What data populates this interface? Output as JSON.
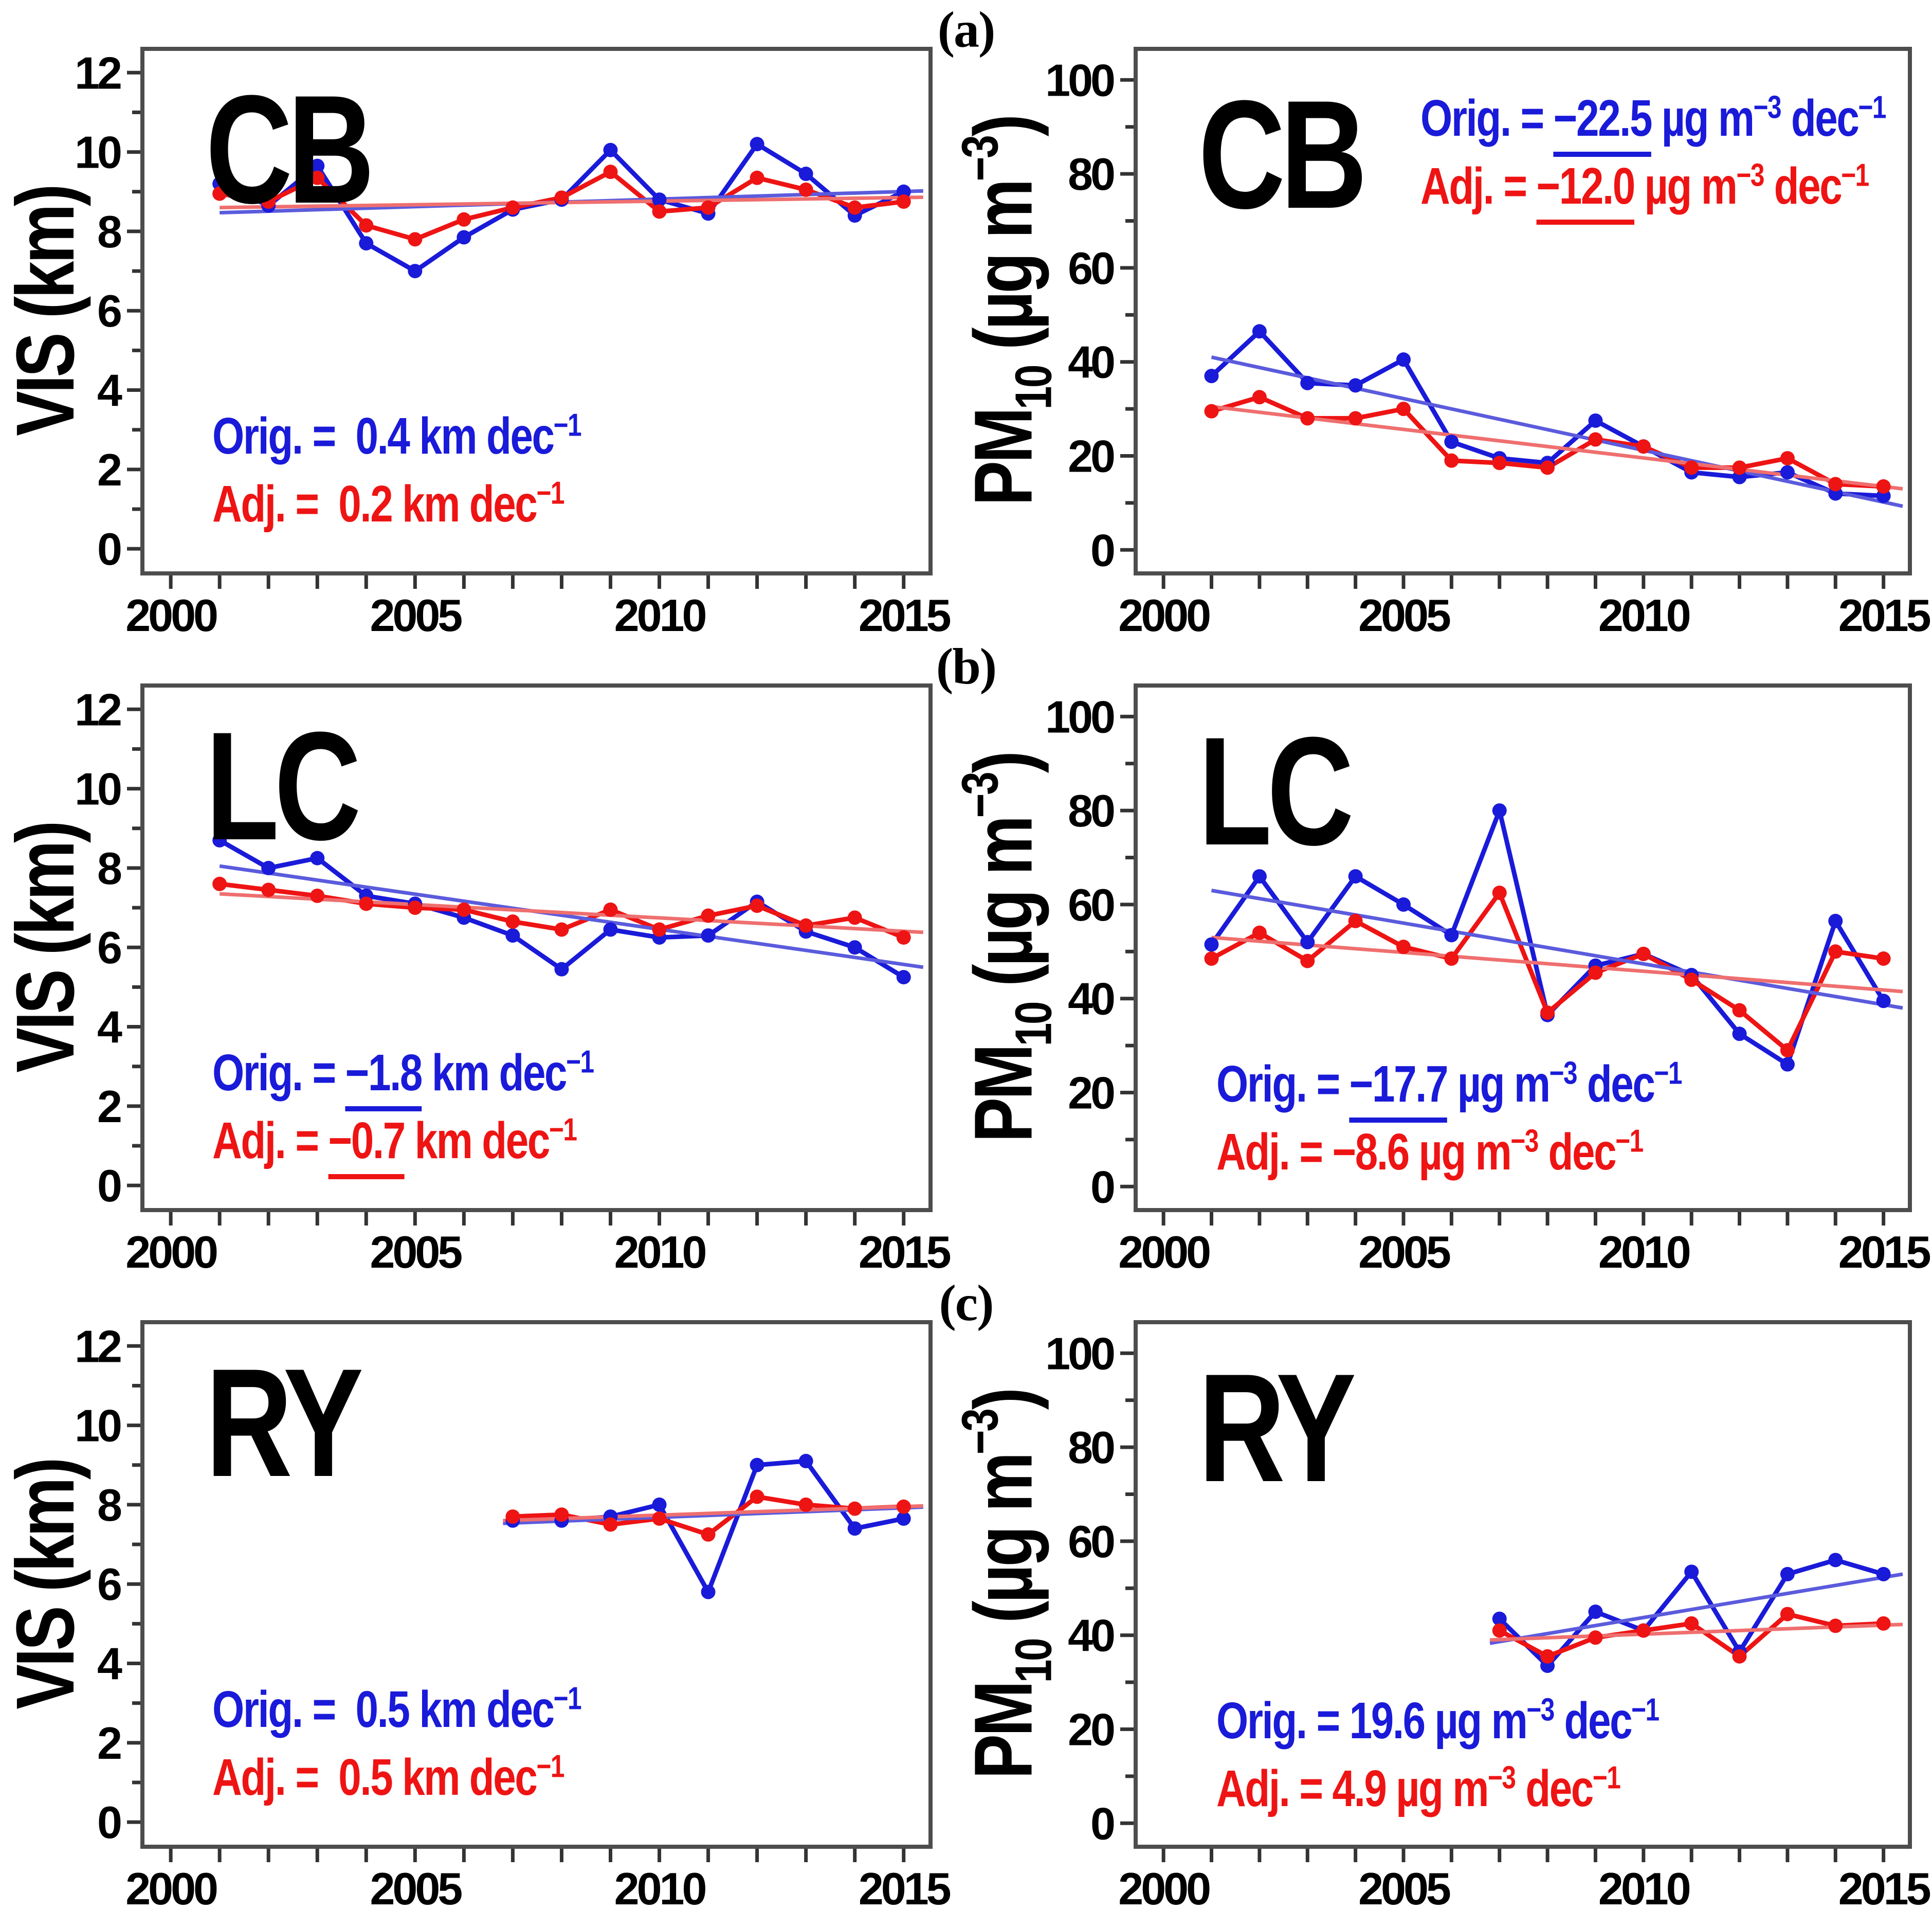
{
  "figure": {
    "rows": [
      {
        "label": "(a)"
      },
      {
        "label": "(b)"
      },
      {
        "label": "(c)"
      }
    ]
  },
  "colors": {
    "orig": "#1a1ad9",
    "adj": "#ee1414",
    "orig_trend": "#5b5bdd",
    "adj_trend": "#ef6f6f",
    "frame": "#4d4d4d",
    "tick": "#333333",
    "text": "#000000"
  },
  "x_axis": {
    "min": 1999.42,
    "max": 2015.55,
    "tick_start": 2000,
    "tick_end": 2015,
    "tick_step": 1,
    "labeled_ticks": [
      2000,
      2005,
      2010,
      2015
    ]
  },
  "chart_data": [
    {
      "id": "cb-vis",
      "row": 0,
      "col": 0,
      "station": "CB",
      "type": "line",
      "ylabel": [
        {
          "t": "VIS (km)"
        }
      ],
      "ylim": [
        -0.62,
        12.6
      ],
      "ytick_step": 1,
      "ylabeled_ticks": [
        0,
        2,
        4,
        6,
        8,
        10,
        12
      ],
      "x": [
        2001,
        2002,
        2003,
        2004,
        2005,
        2006,
        2007,
        2008,
        2009,
        2010,
        2011,
        2012,
        2013,
        2014,
        2015
      ],
      "series": [
        {
          "name": "Orig.",
          "color": "orig",
          "values": [
            9.2,
            8.65,
            9.65,
            7.7,
            7.0,
            7.85,
            8.55,
            8.8,
            10.05,
            8.8,
            8.45,
            10.2,
            9.45,
            8.4,
            9.0
          ]
        },
        {
          "name": "Adj.",
          "color": "adj",
          "values": [
            8.95,
            8.75,
            9.35,
            8.15,
            7.8,
            8.3,
            8.6,
            8.85,
            9.5,
            8.5,
            8.6,
            9.35,
            9.05,
            8.6,
            8.75
          ]
        }
      ],
      "trends": [
        {
          "color": "orig_trend",
          "x": [
            2001,
            2015.4
          ],
          "y": [
            8.47,
            9.02
          ]
        },
        {
          "color": "adj_trend",
          "x": [
            2001,
            2015.4
          ],
          "y": [
            8.6,
            8.86
          ]
        }
      ],
      "legend": {
        "x": 2000.85,
        "y": 3.7,
        "lines": [
          {
            "color": "orig",
            "segments": [
              {
                "t": "Orig. =  "
              },
              {
                "t": "0.4"
              },
              {
                "t": " km dec"
              },
              {
                "t": "−1",
                "sup": true
              }
            ]
          },
          {
            "color": "adj",
            "segments": [
              {
                "t": "Adj. =  "
              },
              {
                "t": "0.2"
              },
              {
                "t": " km dec"
              },
              {
                "t": "−1",
                "sup": true
              }
            ]
          }
        ]
      }
    },
    {
      "id": "cb-pm10",
      "row": 0,
      "col": 1,
      "station": "CB",
      "type": "line",
      "ylabel": [
        {
          "t": "PM"
        },
        {
          "t": "10",
          "sub": true
        },
        {
          "t": " (µg m"
        },
        {
          "t": "−3",
          "sup": true
        },
        {
          "t": ")"
        }
      ],
      "ylim": [
        -5,
        106.6
      ],
      "ytick_step": 10,
      "ylabeled_ticks": [
        0,
        20,
        40,
        60,
        80,
        100
      ],
      "x": [
        2001,
        2002,
        2003,
        2004,
        2005,
        2006,
        2007,
        2008,
        2009,
        2010,
        2011,
        2012,
        2013,
        2014,
        2015
      ],
      "series": [
        {
          "name": "Orig.",
          "color": "orig",
          "values": [
            37,
            46.5,
            35.5,
            35,
            40.5,
            23,
            19.5,
            18.5,
            27.5,
            22,
            16.5,
            15.5,
            16.5,
            12,
            11.5
          ]
        },
        {
          "name": "Adj.",
          "color": "adj",
          "values": [
            29.5,
            32.5,
            28,
            28,
            30,
            19,
            18.5,
            17.5,
            23.5,
            22,
            17.5,
            17.5,
            19.5,
            14,
            13.5
          ]
        }
      ],
      "trends": [
        {
          "color": "orig_trend",
          "x": [
            2001,
            2015.4
          ],
          "y": [
            41,
            9.3
          ]
        },
        {
          "color": "adj_trend",
          "x": [
            2001,
            2015.4
          ],
          "y": [
            30.5,
            13
          ]
        }
      ],
      "legend": {
        "x": 2005.35,
        "y": 99,
        "lines": [
          {
            "color": "orig",
            "segments": [
              {
                "t": "Orig. = "
              },
              {
                "t": "−22.5",
                "u": true
              },
              {
                "t": " µg m"
              },
              {
                "t": "−3",
                "sup": true
              },
              {
                "t": " dec"
              },
              {
                "t": "−1",
                "sup": true
              }
            ]
          },
          {
            "color": "adj",
            "segments": [
              {
                "t": "Adj. = "
              },
              {
                "t": "−12.0",
                "u": true
              },
              {
                "t": " µg m"
              },
              {
                "t": "−3",
                "sup": true
              },
              {
                "t": " dec"
              },
              {
                "t": "−1",
                "sup": true
              }
            ]
          }
        ]
      }
    },
    {
      "id": "lc-vis",
      "row": 1,
      "col": 0,
      "station": "LC",
      "type": "line",
      "ylabel": [
        {
          "t": "VIS (km)"
        }
      ],
      "ylim": [
        -0.62,
        12.6
      ],
      "ytick_step": 1,
      "ylabeled_ticks": [
        0,
        2,
        4,
        6,
        8,
        10,
        12
      ],
      "x": [
        2001,
        2002,
        2003,
        2004,
        2005,
        2006,
        2007,
        2008,
        2009,
        2010,
        2011,
        2012,
        2013,
        2014,
        2015
      ],
      "series": [
        {
          "name": "Orig.",
          "color": "orig",
          "values": [
            8.7,
            8.0,
            8.25,
            7.3,
            7.1,
            6.75,
            6.3,
            5.45,
            6.45,
            6.25,
            6.3,
            7.15,
            6.4,
            6.0,
            5.25
          ]
        },
        {
          "name": "Adj.",
          "color": "adj",
          "values": [
            7.6,
            7.45,
            7.3,
            7.1,
            7.0,
            6.95,
            6.65,
            6.45,
            6.95,
            6.45,
            6.8,
            7.05,
            6.55,
            6.75,
            6.25
          ]
        }
      ],
      "trends": [
        {
          "color": "orig_trend",
          "x": [
            2001,
            2015.4
          ],
          "y": [
            8.05,
            5.5
          ]
        },
        {
          "color": "adj_trend",
          "x": [
            2001,
            2015.4
          ],
          "y": [
            7.35,
            6.38
          ]
        }
      ],
      "legend": {
        "x": 2000.85,
        "y": 3.7,
        "lines": [
          {
            "color": "orig",
            "segments": [
              {
                "t": "Orig. = "
              },
              {
                "t": "−1.8",
                "u": true
              },
              {
                "t": " km dec"
              },
              {
                "t": "−1",
                "sup": true
              }
            ]
          },
          {
            "color": "adj",
            "segments": [
              {
                "t": "Adj. = "
              },
              {
                "t": "−0.7",
                "u": true
              },
              {
                "t": " km dec"
              },
              {
                "t": "−1",
                "sup": true
              }
            ]
          }
        ]
      }
    },
    {
      "id": "lc-pm10",
      "row": 1,
      "col": 1,
      "station": "LC",
      "type": "line",
      "ylabel": [
        {
          "t": "PM"
        },
        {
          "t": "10",
          "sub": true
        },
        {
          "t": " (µg m"
        },
        {
          "t": "−3",
          "sup": true
        },
        {
          "t": ")"
        }
      ],
      "ylim": [
        -5,
        106.6
      ],
      "ytick_step": 10,
      "ylabeled_ticks": [
        0,
        20,
        40,
        60,
        80,
        100
      ],
      "x": [
        2001,
        2002,
        2003,
        2004,
        2005,
        2006,
        2007,
        2008,
        2009,
        2010,
        2011,
        2012,
        2013,
        2014,
        2015
      ],
      "series": [
        {
          "name": "Orig.",
          "color": "orig",
          "values": [
            51.5,
            66,
            52,
            66,
            60,
            53.5,
            80,
            36.5,
            47,
            49.5,
            45,
            32.5,
            26,
            56.5,
            39.5
          ]
        },
        {
          "name": "Adj.",
          "color": "adj",
          "values": [
            48.5,
            54,
            48,
            56.5,
            51,
            48.5,
            62.5,
            37,
            45.5,
            49.5,
            44,
            37.5,
            29,
            50,
            48.5
          ]
        }
      ],
      "trends": [
        {
          "color": "orig_trend",
          "x": [
            2001,
            2015.4
          ],
          "y": [
            63,
            38
          ]
        },
        {
          "color": "adj_trend",
          "x": [
            2001,
            2015.4
          ],
          "y": [
            53,
            41.5
          ]
        }
      ],
      "legend": {
        "x": 2001.1,
        "y": 29,
        "lines": [
          {
            "color": "orig",
            "segments": [
              {
                "t": "Orig. = "
              },
              {
                "t": "−17.7",
                "u": true
              },
              {
                "t": " µg m"
              },
              {
                "t": "−3",
                "sup": true
              },
              {
                "t": " dec"
              },
              {
                "t": "−1",
                "sup": true
              }
            ]
          },
          {
            "color": "adj",
            "segments": [
              {
                "t": "Adj. = "
              },
              {
                "t": "−8.6"
              },
              {
                "t": " µg m"
              },
              {
                "t": "−3",
                "sup": true
              },
              {
                "t": " dec"
              },
              {
                "t": "−1",
                "sup": true
              }
            ]
          }
        ]
      }
    },
    {
      "id": "ry-vis",
      "row": 2,
      "col": 0,
      "station": "RY",
      "type": "line",
      "ylabel": [
        {
          "t": "VIS (km)"
        }
      ],
      "ylim": [
        -0.62,
        12.6
      ],
      "ytick_step": 1,
      "ylabeled_ticks": [
        0,
        2,
        4,
        6,
        8,
        10,
        12
      ],
      "x": [
        2007,
        2008,
        2009,
        2010,
        2011,
        2012,
        2013,
        2014,
        2015
      ],
      "series": [
        {
          "name": "Orig.",
          "color": "orig",
          "values": [
            7.6,
            7.6,
            7.7,
            8.0,
            5.8,
            9.0,
            9.1,
            7.4,
            7.65
          ]
        },
        {
          "name": "Adj.",
          "color": "adj",
          "values": [
            7.7,
            7.75,
            7.5,
            7.65,
            7.25,
            8.2,
            8.0,
            7.9,
            7.95
          ]
        }
      ],
      "trends": [
        {
          "color": "orig_trend",
          "x": [
            2006.8,
            2015.4
          ],
          "y": [
            7.53,
            7.94
          ]
        },
        {
          "color": "adj_trend",
          "x": [
            2006.8,
            2015.4
          ],
          "y": [
            7.6,
            7.97
          ]
        }
      ],
      "legend": {
        "x": 2000.85,
        "y": 3.7,
        "lines": [
          {
            "color": "orig",
            "segments": [
              {
                "t": "Orig. =  "
              },
              {
                "t": "0.5"
              },
              {
                "t": " km dec"
              },
              {
                "t": "−1",
                "sup": true
              }
            ]
          },
          {
            "color": "adj",
            "segments": [
              {
                "t": "Adj. =  "
              },
              {
                "t": "0.5"
              },
              {
                "t": " km dec"
              },
              {
                "t": "−1",
                "sup": true
              }
            ]
          }
        ]
      }
    },
    {
      "id": "ry-pm10",
      "row": 2,
      "col": 1,
      "station": "RY",
      "type": "line",
      "ylabel": [
        {
          "t": "PM"
        },
        {
          "t": "10",
          "sub": true
        },
        {
          "t": " (µg m"
        },
        {
          "t": "−3",
          "sup": true
        },
        {
          "t": ")"
        }
      ],
      "ylim": [
        -5,
        106.6
      ],
      "ytick_step": 10,
      "ylabeled_ticks": [
        0,
        20,
        40,
        60,
        80,
        100
      ],
      "x": [
        2007,
        2008,
        2009,
        2010,
        2011,
        2012,
        2013,
        2014,
        2015
      ],
      "series": [
        {
          "name": "Orig.",
          "color": "orig",
          "values": [
            43.5,
            33.5,
            45,
            41,
            53.5,
            36.5,
            53,
            56,
            53
          ]
        },
        {
          "name": "Adj.",
          "color": "adj",
          "values": [
            41,
            35.5,
            39.5,
            41,
            42.5,
            35.5,
            44.5,
            42,
            42.5
          ]
        }
      ],
      "trends": [
        {
          "color": "orig_trend",
          "x": [
            2006.8,
            2015.4
          ],
          "y": [
            38.3,
            53
          ]
        },
        {
          "color": "adj_trend",
          "x": [
            2006.8,
            2015.4
          ],
          "y": [
            39,
            42.3
          ]
        }
      ],
      "legend": {
        "x": 2001.1,
        "y": 29,
        "lines": [
          {
            "color": "orig",
            "segments": [
              {
                "t": "Orig. = "
              },
              {
                "t": "19.6"
              },
              {
                "t": " µg m"
              },
              {
                "t": "−3",
                "sup": true
              },
              {
                "t": " dec"
              },
              {
                "t": "−1",
                "sup": true
              }
            ]
          },
          {
            "color": "adj",
            "segments": [
              {
                "t": "Adj. = "
              },
              {
                "t": "4.9"
              },
              {
                "t": " µg m"
              },
              {
                "t": "−3",
                "sup": true
              },
              {
                "t": " dec"
              },
              {
                "t": "−1",
                "sup": true
              }
            ]
          }
        ]
      }
    }
  ]
}
